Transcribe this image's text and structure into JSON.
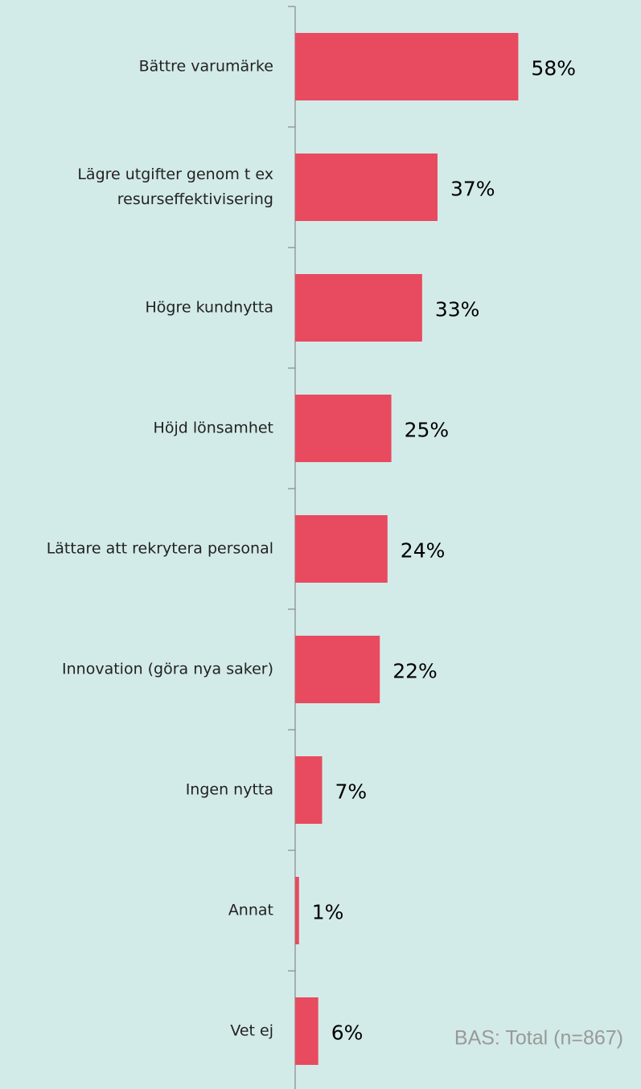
{
  "chart_data": {
    "type": "hbar",
    "categories": [
      "Bättre varumärke",
      "Lägre utgifter genom t ex resurseffektivisering",
      "Högre kundnytta",
      "Höjd lönsamhet",
      "Lättare att rekrytera personal",
      "Innovation (göra nya saker)",
      "Ingen nytta",
      "Annat",
      "Vet ej"
    ],
    "values": [
      58,
      37,
      33,
      25,
      24,
      22,
      7,
      1,
      6
    ],
    "value_labels": [
      "58%",
      "37%",
      "33%",
      "25%",
      "24%",
      "22%",
      "7%",
      "1%",
      "6%"
    ],
    "color": "#e84a5f",
    "xlim": [
      0,
      60
    ],
    "note": "BAS: Total (n=867)"
  }
}
